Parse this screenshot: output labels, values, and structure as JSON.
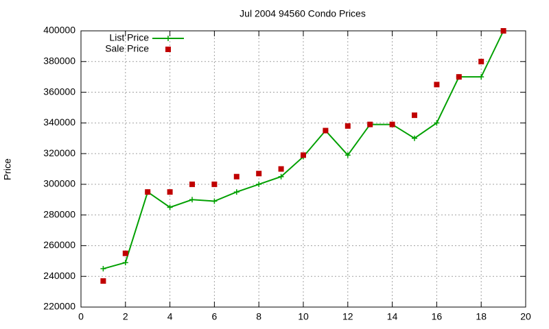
{
  "chart_data": {
    "type": "line",
    "title": "Jul 2004 94560 Condo Prices",
    "y_label": "Price",
    "x": [
      1,
      2,
      3,
      4,
      5,
      6,
      7,
      8,
      9,
      10,
      11,
      12,
      13,
      14,
      15,
      16,
      17,
      18,
      19
    ],
    "series": [
      {
        "name": "List Price",
        "color": "#00a000",
        "style": "linespoints",
        "values": [
          245000,
          249000,
          295000,
          285000,
          290000,
          289000,
          295000,
          300000,
          305000,
          318000,
          335000,
          319000,
          339000,
          339000,
          330000,
          340000,
          370000,
          370000,
          400000
        ]
      },
      {
        "name": "Sale Price",
        "color": "#c00000",
        "style": "points",
        "values": [
          237000,
          255000,
          295000,
          295000,
          300000,
          300000,
          305000,
          307000,
          310000,
          319000,
          335000,
          338000,
          339000,
          339000,
          345000,
          365000,
          370000,
          380000,
          400000
        ]
      }
    ],
    "xlim": [
      0,
      20
    ],
    "xticks": [
      0,
      2,
      4,
      6,
      8,
      10,
      12,
      14,
      16,
      18,
      20
    ],
    "ylim": [
      220000,
      400000
    ],
    "yticks": [
      220000,
      240000,
      260000,
      280000,
      300000,
      320000,
      340000,
      360000,
      380000,
      400000
    ],
    "grid": true,
    "legend": "top-left"
  }
}
